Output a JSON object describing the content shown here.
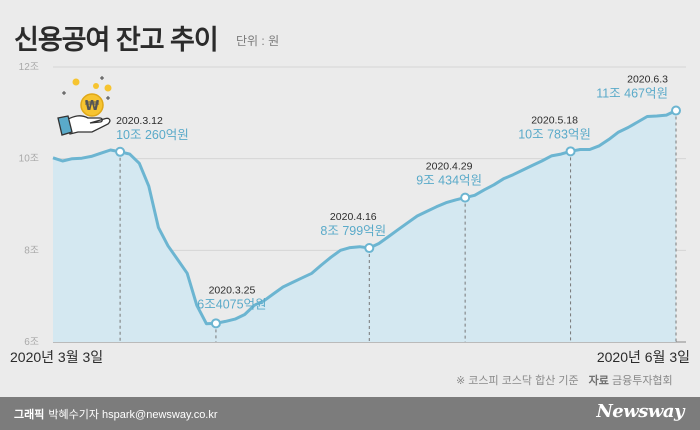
{
  "header": {
    "title": "신용공여 잔고 추이",
    "unit": "단위 : 원"
  },
  "chart_data": {
    "type": "line",
    "title": "신용공여 잔고 추이",
    "unit": "단위 : 원",
    "ylim": [
      6,
      12
    ],
    "yticks": [
      "6조",
      "8조",
      "10조",
      "12조"
    ],
    "x_start_label": "2020년 3월 3일",
    "x_end_label": "2020년 6월 3일",
    "series": [
      {
        "values": [
          10.02,
          9.95,
          10.0,
          10.01,
          10.05,
          10.12,
          10.19,
          10.15,
          10.1,
          9.9,
          9.4,
          8.5,
          8.1,
          7.8,
          7.5,
          6.8,
          6.4,
          6.407,
          6.45,
          6.5,
          6.6,
          6.8,
          6.9,
          7.05,
          7.2,
          7.3,
          7.4,
          7.5,
          7.68,
          7.85,
          8.0,
          8.06,
          8.08,
          8.05,
          8.15,
          8.3,
          8.45,
          8.6,
          8.75,
          8.85,
          8.95,
          9.04,
          9.1,
          9.15,
          9.2,
          9.32,
          9.43,
          9.56,
          9.65,
          9.75,
          9.85,
          9.95,
          10.06,
          10.1,
          10.16,
          10.2,
          10.2,
          10.28,
          10.42,
          10.58,
          10.68,
          10.8,
          10.92,
          10.93,
          10.95,
          11.05
        ]
      }
    ],
    "annotations": [
      {
        "date": "2020.3.12",
        "value_text": "10조 260억원",
        "value": 10.026
      },
      {
        "date": "2020.3.25",
        "value_text": "6조4075억원",
        "value": 6.4075
      },
      {
        "date": "2020.4.16",
        "value_text": "8조 799억원",
        "value": 8.0799
      },
      {
        "date": "2020.4.29",
        "value_text": "9조 434억원",
        "value": 9.0434
      },
      {
        "date": "2020.5.18",
        "value_text": "10조 783억원",
        "value": 10.0783
      },
      {
        "date": "2020.6.3",
        "value_text": "11조 467억원",
        "value": 11.0467
      }
    ],
    "colors": {
      "line": "#6cb5d1",
      "area": "#d4e8f1",
      "label": "#5aaac9",
      "text": "#2b2b2b",
      "axis": "#a9a9a9",
      "grid": "#d6d6d6"
    },
    "grid": true,
    "illustration": "hand-holding-won-coin-icon"
  },
  "footer": {
    "note": "※ 코스피 코스닥 합산 기준",
    "source_label": "자료",
    "source": "금융투자협회",
    "credit_role": "그래픽",
    "credit": "박혜수기자 hspark@newsway.co.kr",
    "brand": "Newsway"
  }
}
